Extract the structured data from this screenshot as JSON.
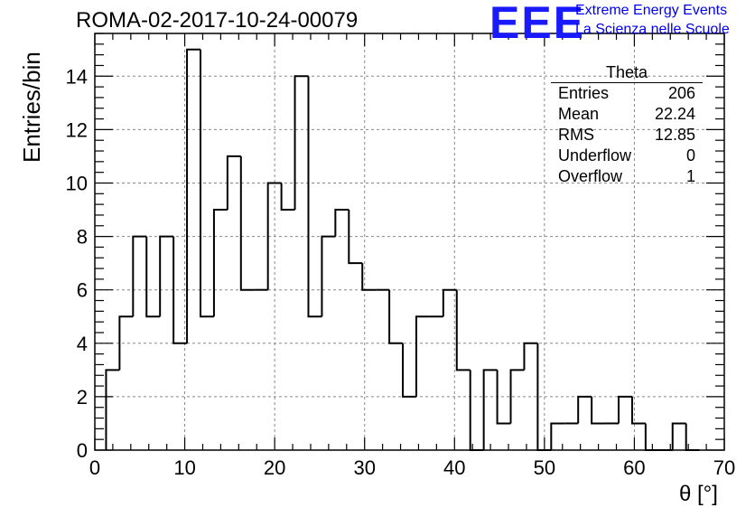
{
  "header": {
    "run_title": "ROMA-02-2017-10-24-00079",
    "logo_text": "EEE",
    "logo_line1": "Extreme Energy Events",
    "logo_line2": "La Scienza nelle Scuole"
  },
  "stats": {
    "title": "Theta",
    "rows": [
      {
        "label": "Entries",
        "value": "206"
      },
      {
        "label": "Mean",
        "value": "22.24"
      },
      {
        "label": "RMS",
        "value": "12.85"
      },
      {
        "label": "Underflow",
        "value": "0"
      },
      {
        "label": "Overflow",
        "value": "1"
      }
    ]
  },
  "colors": {
    "line": "#000000",
    "grid": "#888888",
    "logo": "#1a1aff"
  },
  "chart_data": {
    "type": "bar",
    "histogram": true,
    "xlabel": "θ [°]",
    "ylabel": "Entries/bin",
    "xlim": [
      0,
      70
    ],
    "ylim": [
      0,
      15.6
    ],
    "grid": true,
    "x_ticks": [
      0,
      10,
      20,
      30,
      40,
      50,
      60,
      70
    ],
    "y_ticks": [
      0,
      2,
      4,
      6,
      8,
      10,
      12,
      14
    ],
    "bin_edges_start": 1.25,
    "bin_width": 1.5,
    "values": [
      3,
      5,
      8,
      5,
      8,
      4,
      15,
      5,
      9,
      11,
      6,
      6,
      10,
      9,
      14,
      5,
      8,
      9,
      7,
      6,
      6,
      4,
      2,
      5,
      5,
      6,
      3,
      0,
      3,
      1,
      3,
      4,
      0,
      1,
      1,
      2,
      1,
      1,
      2,
      1,
      0,
      0,
      1,
      0
    ]
  }
}
